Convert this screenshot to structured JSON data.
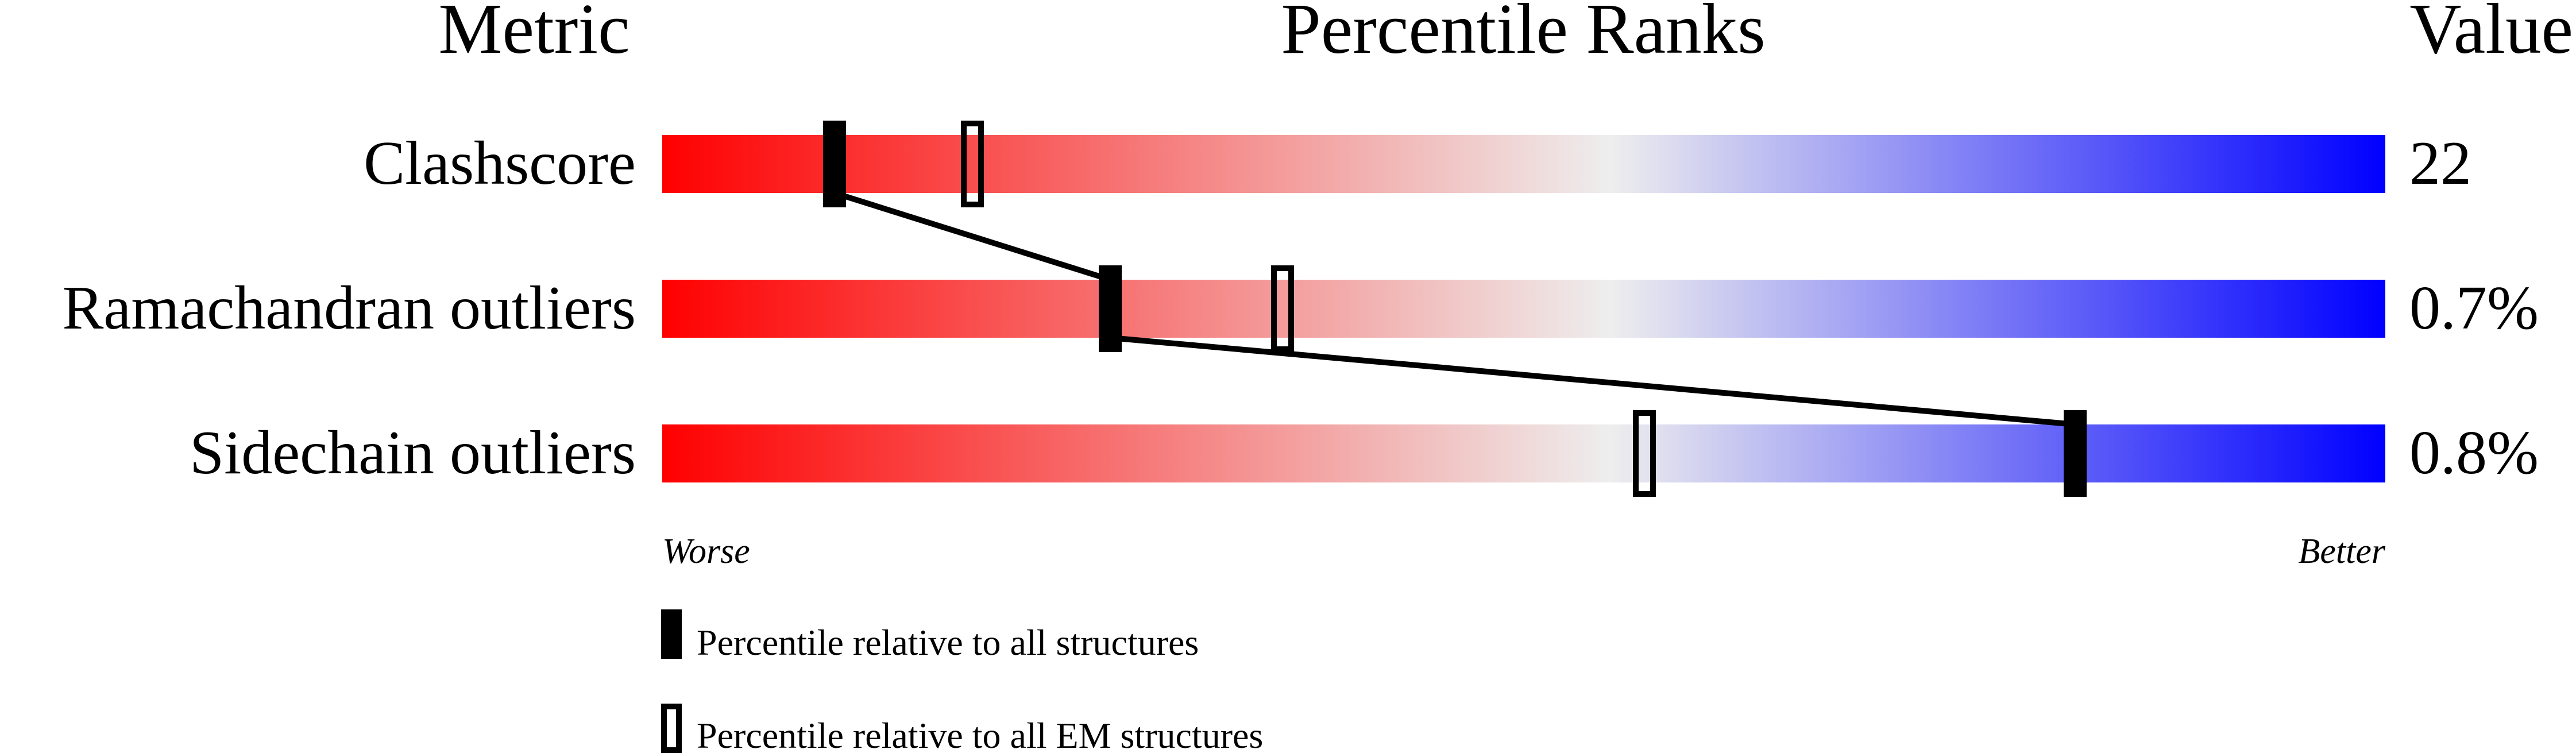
{
  "chart_data": {
    "type": "percentile-bar",
    "headers": {
      "metric": "Metric",
      "ranks": "Percentile Ranks",
      "value": "Value"
    },
    "xlim": [
      0,
      100
    ],
    "axis_labels": {
      "left": "Worse",
      "right": "Better"
    },
    "gradient_colors": [
      "#ff0000",
      "#eeeeee",
      "#0000ff"
    ],
    "rows": [
      {
        "metric": "Clashscore",
        "value": "22",
        "percentile_all": 10,
        "percentile_em": 18
      },
      {
        "metric": "Ramachandran outliers",
        "value": "0.7%",
        "percentile_all": 26,
        "percentile_em": 36
      },
      {
        "metric": "Sidechain outliers",
        "value": "0.8%",
        "percentile_all": 82,
        "percentile_em": 57
      }
    ],
    "legend": {
      "all": "Percentile relative to all structures",
      "em": "Percentile relative to all EM structures"
    }
  }
}
